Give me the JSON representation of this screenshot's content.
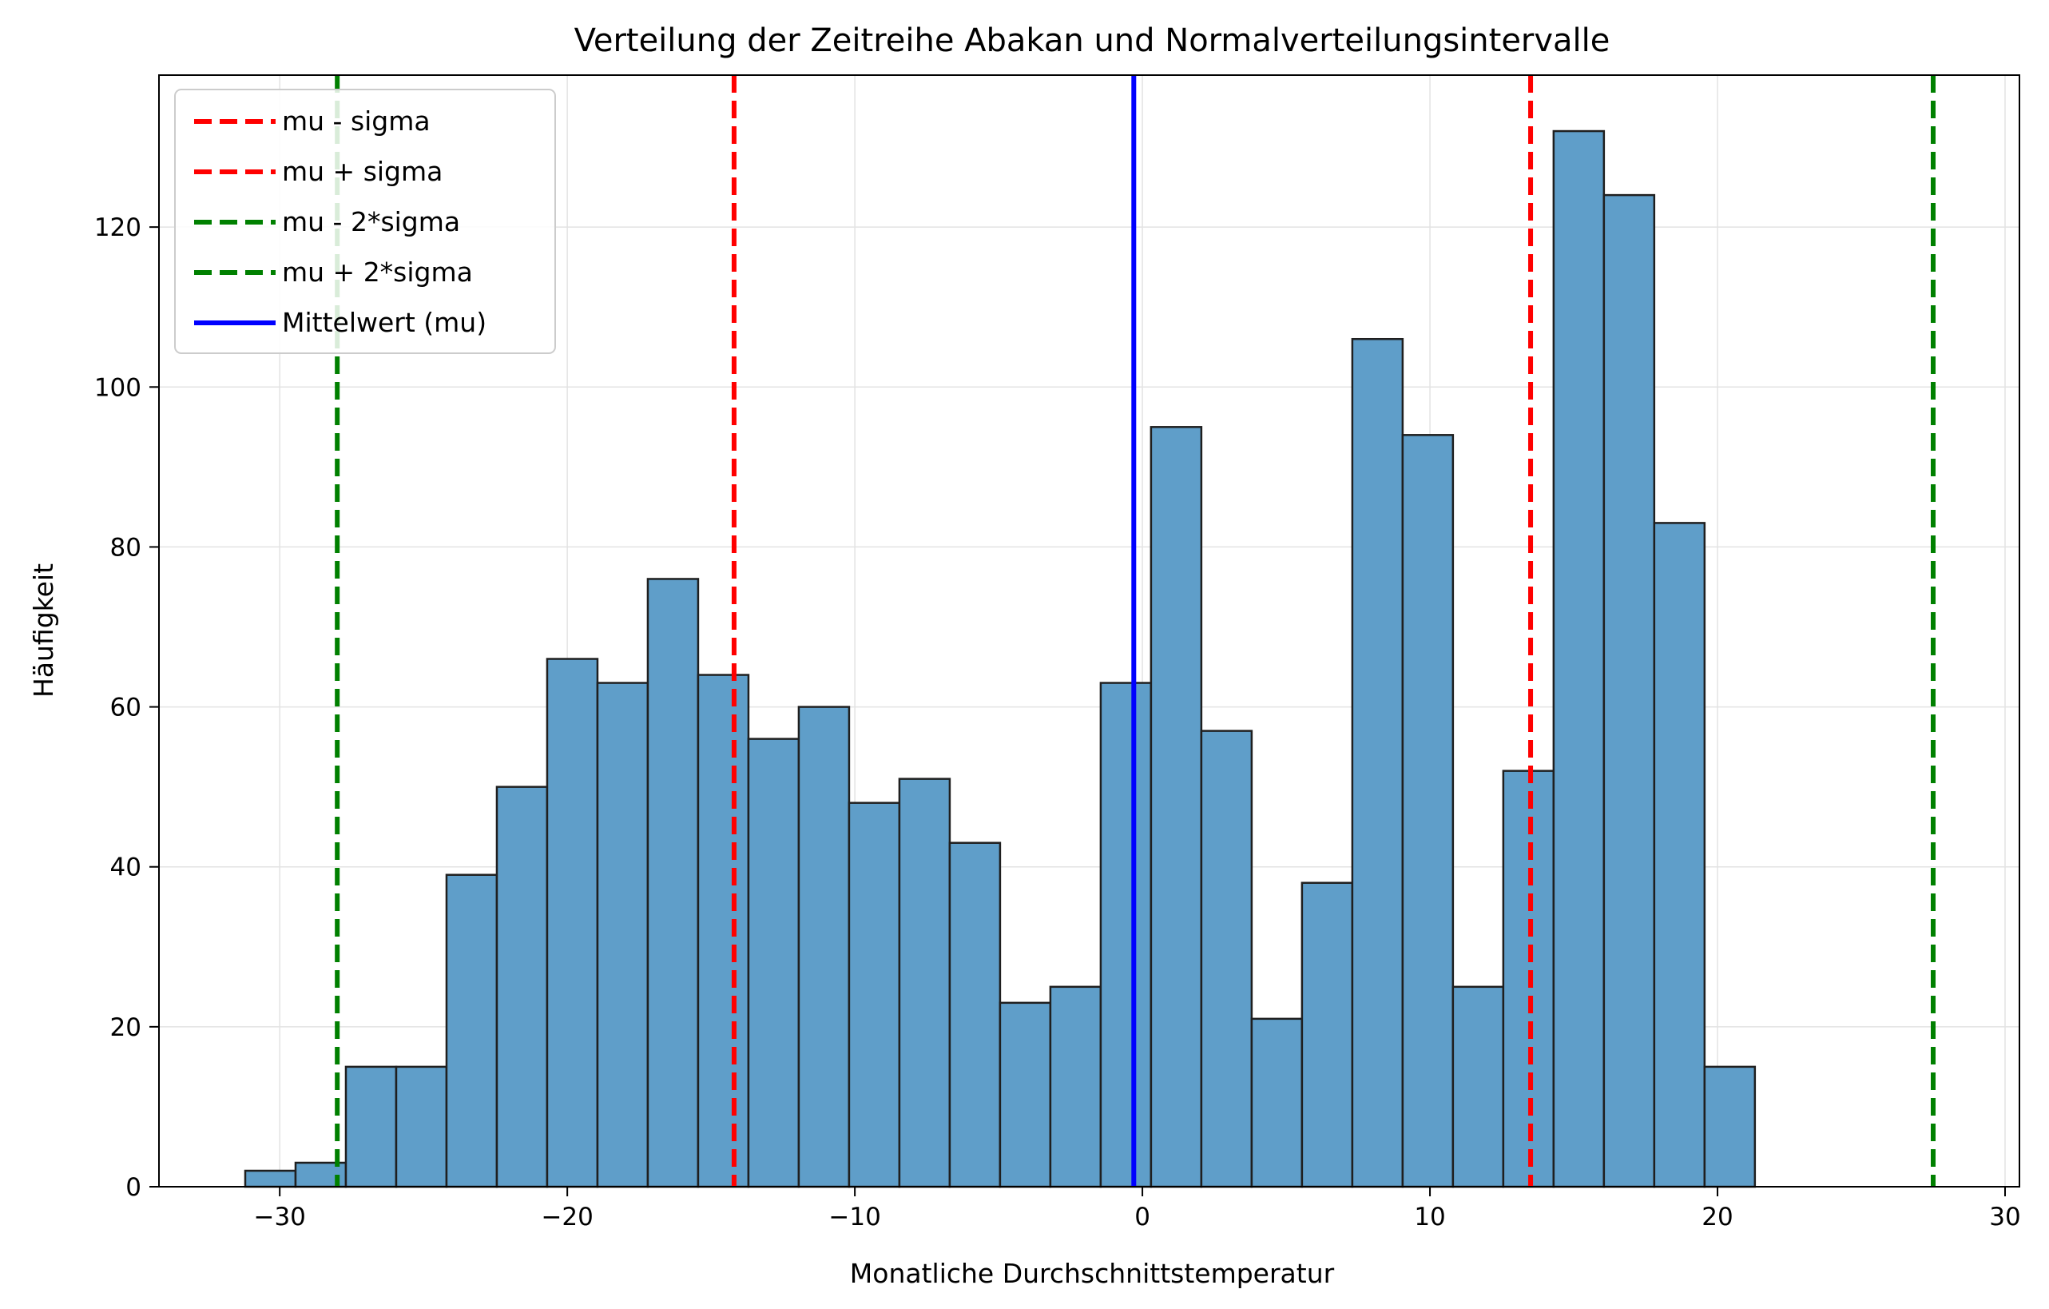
{
  "chart_data": {
    "type": "bar",
    "title": "Verteilung der Zeitreihe Abakan und Normalverteilungsintervalle",
    "xlabel": "Monatliche Durchschnittstemperatur",
    "ylabel": "Häufigkeit",
    "xlim": [
      -34.2,
      30.5
    ],
    "ylim": [
      0,
      139
    ],
    "xticks": [
      -30,
      -20,
      -10,
      0,
      10,
      20,
      30
    ],
    "xtick_labels": [
      "−30",
      "−20",
      "−10",
      "0",
      "10",
      "20",
      "30"
    ],
    "yticks": [
      0,
      20,
      40,
      60,
      80,
      100,
      120
    ],
    "ytick_labels": [
      "0",
      "20",
      "40",
      "60",
      "80",
      "100",
      "120"
    ],
    "grid": true,
    "legend_position": "top-left",
    "bin_start": -31.2,
    "bin_width": 1.75,
    "counts": [
      2,
      3,
      15,
      15,
      39,
      50,
      66,
      63,
      76,
      64,
      56,
      60,
      48,
      51,
      43,
      23,
      25,
      63,
      95,
      57,
      21,
      38,
      106,
      94,
      25,
      52,
      132,
      124,
      83,
      15
    ],
    "bar_color": "#5f9ec9",
    "bar_edge_color": "#1f1f1f",
    "vlines": [
      {
        "name": "mu - sigma",
        "x": -14.2,
        "color": "#ff0000",
        "style": "dashed"
      },
      {
        "name": "mu + sigma",
        "x": 13.5,
        "color": "#ff0000",
        "style": "dashed"
      },
      {
        "name": "mu - 2*sigma",
        "x": -28.0,
        "color": "#008000",
        "style": "dashed"
      },
      {
        "name": "mu + 2*sigma",
        "x": 27.5,
        "color": "#008000",
        "style": "dashed"
      },
      {
        "name": "Mittelwert (mu)",
        "x": -0.3,
        "color": "#0000ff",
        "style": "solid"
      }
    ]
  }
}
